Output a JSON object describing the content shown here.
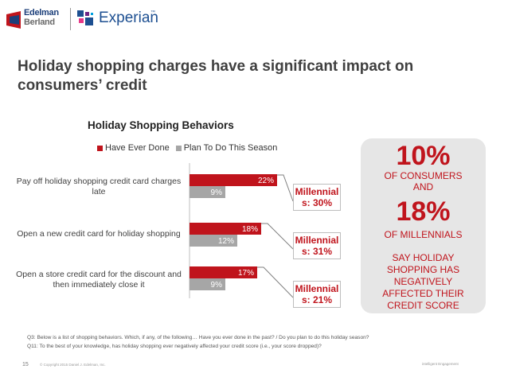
{
  "logos": {
    "edelman_line1": "Edelman",
    "edelman_line2": "Berland",
    "experian": "Experian",
    "experian_tm": "™"
  },
  "title": "Holiday shopping charges have a significant impact on consumers’ credit",
  "chart_data": {
    "type": "bar",
    "orientation": "horizontal",
    "title": "Holiday Shopping Behaviors",
    "categories": [
      "Pay off holiday shopping credit card charges late",
      "Open a new credit card for holiday shopping",
      "Open a store credit card for the discount and then immediately close it"
    ],
    "series": [
      {
        "name": "Have Ever Done",
        "values": [
          22,
          18,
          17
        ],
        "labels": [
          "22%",
          "18%",
          "17%"
        ],
        "color": "#c0141c"
      },
      {
        "name": "Plan To Do This Season",
        "values": [
          9,
          12,
          9
        ],
        "labels": [
          "9%",
          "12%",
          "9%"
        ],
        "color": "#a6a6a6"
      }
    ],
    "xlim": [
      0,
      25
    ],
    "grid": false,
    "legend_position": "top",
    "annotations": [
      {
        "label": "Millennial",
        "value": "s: 30%"
      },
      {
        "label": "Millennial",
        "value": "s: 31%"
      },
      {
        "label": "Millennial",
        "value": "s: 21%"
      }
    ]
  },
  "side_panel": {
    "stat1": "10%",
    "stat1_line1": "OF CONSUMERS",
    "stat1_line2": "AND",
    "stat2": "18%",
    "stat2_line": "OF MILLENNIALS",
    "conclusion": [
      "SAY HOLIDAY",
      "SHOPPING HAS",
      "NEGATIVELY",
      "AFFECTED THEIR",
      "CREDIT SCORE"
    ],
    "background": "#e6e6e6",
    "text_color": "#c0141c"
  },
  "footnotes": [
    "Q3: Below is a list of shopping behaviors. Which, if any, of the following… Have you ever done in the past? / Do you plan to do this holiday season?",
    "Q11: To the best of your knowledge, has holiday shopping ever negatively affected your credit score (i.e., your score dropped)?"
  ],
  "footer": {
    "page_number": "15",
    "copyright": "© Copyright 2015 Daniel J. Edelman, Inc.",
    "tagline": "intelligent Engagement"
  }
}
